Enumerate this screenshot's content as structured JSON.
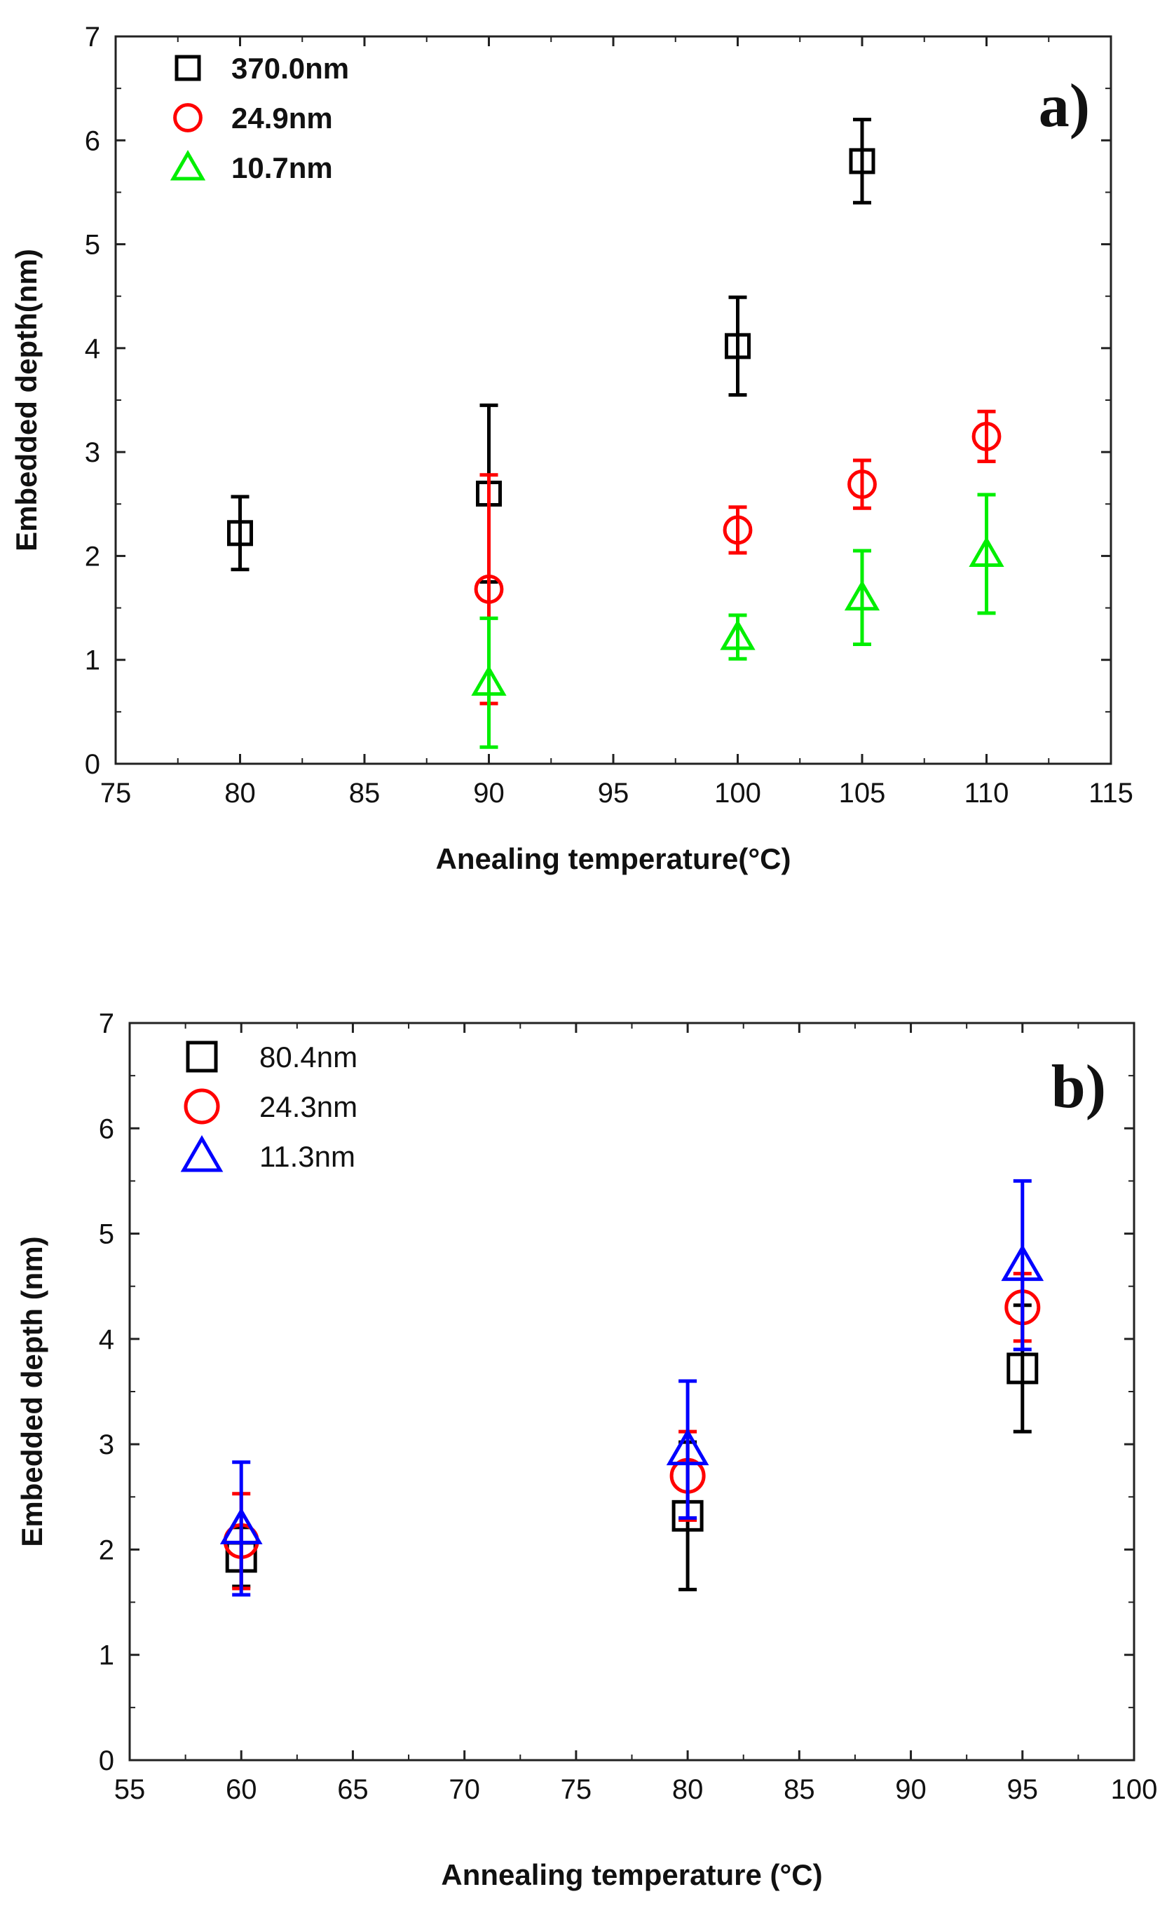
{
  "chart_data": [
    {
      "type": "scatter",
      "panel_label": "a)",
      "title": "",
      "xlabel": "Anealing temperature(°C)",
      "ylabel": "Embedded depth(nm)",
      "xlim": [
        75,
        115
      ],
      "ylim": [
        0,
        7
      ],
      "x_ticks": [
        75,
        80,
        85,
        90,
        95,
        100,
        105,
        110,
        115
      ],
      "y_ticks": [
        0,
        1,
        2,
        3,
        4,
        5,
        6,
        7
      ],
      "legend_position": "top-left",
      "series": [
        {
          "name": "370.0nm",
          "marker": "square",
          "color": "#000000",
          "x": [
            80,
            90,
            100,
            105
          ],
          "y": [
            2.22,
            2.6,
            4.02,
            5.8
          ],
          "err": [
            0.35,
            0.85,
            0.47,
            0.4
          ]
        },
        {
          "name": "24.9nm",
          "marker": "circle",
          "color": "#ff0000",
          "x": [
            90,
            100,
            105,
            110
          ],
          "y": [
            1.68,
            2.25,
            2.69,
            3.15
          ],
          "err": [
            1.1,
            0.22,
            0.23,
            0.24
          ]
        },
        {
          "name": "10.7nm",
          "marker": "triangle",
          "color": "#00ee00",
          "x": [
            90,
            100,
            105,
            110
          ],
          "y": [
            0.78,
            1.22,
            1.6,
            2.02
          ],
          "err": [
            0.62,
            0.21,
            0.45,
            0.57
          ]
        }
      ]
    },
    {
      "type": "scatter",
      "panel_label": "b)",
      "title": "",
      "xlabel": "Annealing temperature (°C)",
      "ylabel": "Embedded depth (nm)",
      "xlim": [
        55,
        100
      ],
      "ylim": [
        0,
        7
      ],
      "x_ticks": [
        55,
        60,
        65,
        70,
        75,
        80,
        85,
        90,
        95,
        100
      ],
      "y_ticks": [
        0,
        1,
        2,
        3,
        4,
        5,
        6,
        7
      ],
      "legend_position": "top-left",
      "series": [
        {
          "name": "80.4nm",
          "marker": "square",
          "color": "#000000",
          "x": [
            60,
            80,
            95
          ],
          "y": [
            1.93,
            2.32,
            3.72
          ],
          "err": [
            0.28,
            0.7,
            0.6
          ]
        },
        {
          "name": "24.3nm",
          "marker": "circle",
          "color": "#ff0000",
          "x": [
            60,
            80,
            95
          ],
          "y": [
            2.08,
            2.7,
            4.3
          ],
          "err": [
            0.45,
            0.42,
            0.32
          ]
        },
        {
          "name": "11.3nm",
          "marker": "triangle",
          "color": "#0000ff",
          "x": [
            60,
            80,
            95
          ],
          "y": [
            2.2,
            2.95,
            4.7
          ],
          "err": [
            0.63,
            0.65,
            0.8
          ]
        }
      ]
    }
  ]
}
